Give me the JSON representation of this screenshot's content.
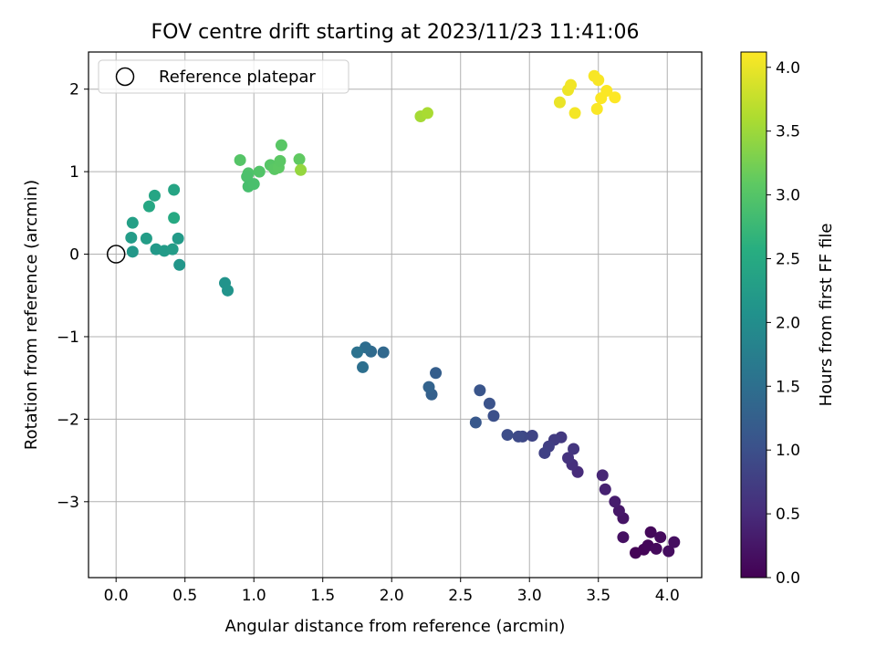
{
  "chart_data": {
    "type": "scatter",
    "title": "FOV centre drift starting at 2023/11/23 11:41:06",
    "xlabel": "Angular distance from reference (arcmin)",
    "ylabel": "Rotation from reference (arcmin)",
    "xlim": [
      -0.2,
      4.25
    ],
    "ylim": [
      -3.92,
      2.45
    ],
    "xticks": [
      0.0,
      0.5,
      1.0,
      1.5,
      2.0,
      2.5,
      3.0,
      3.5,
      4.0
    ],
    "xtick_labels": [
      "0.0",
      "0.5",
      "1.0",
      "1.5",
      "2.0",
      "2.5",
      "3.0",
      "3.5",
      "4.0"
    ],
    "yticks": [
      2,
      1,
      0,
      -1,
      -2,
      -3
    ],
    "ytick_labels": [
      "2",
      "1",
      "0",
      "−1",
      "−2",
      "−3"
    ],
    "grid": true,
    "legend": {
      "placement": "top-left",
      "entries": [
        "Reference platepar"
      ]
    },
    "reference_point": {
      "x": 0.0,
      "y": 0.0,
      "marker": "open-circle",
      "color": "#000000"
    },
    "colorbar": {
      "label": "Hours from first FF file",
      "colormap": "viridis",
      "range": [
        0.0,
        4.12
      ],
      "ticks": [
        0.0,
        0.5,
        1.0,
        1.5,
        2.0,
        2.5,
        3.0,
        3.5,
        4.0
      ],
      "tick_labels": [
        "0.0",
        "0.5",
        "1.0",
        "1.5",
        "2.0",
        "2.5",
        "3.0",
        "3.5",
        "4.0"
      ]
    },
    "points": [
      {
        "x": 3.77,
        "y": -3.62,
        "c": 0.02
      },
      {
        "x": 3.83,
        "y": -3.58,
        "c": 0.04
      },
      {
        "x": 3.86,
        "y": -3.53,
        "c": 0.06
      },
      {
        "x": 3.88,
        "y": -3.37,
        "c": 0.08
      },
      {
        "x": 3.92,
        "y": -3.57,
        "c": 0.1
      },
      {
        "x": 3.95,
        "y": -3.43,
        "c": 0.12
      },
      {
        "x": 4.01,
        "y": -3.6,
        "c": 0.14
      },
      {
        "x": 4.05,
        "y": -3.49,
        "c": 0.16
      },
      {
        "x": 3.68,
        "y": -3.43,
        "c": 0.18
      },
      {
        "x": 3.68,
        "y": -3.2,
        "c": 0.22
      },
      {
        "x": 3.65,
        "y": -3.11,
        "c": 0.26
      },
      {
        "x": 3.62,
        "y": -3.0,
        "c": 0.32
      },
      {
        "x": 3.55,
        "y": -2.85,
        "c": 0.38
      },
      {
        "x": 3.53,
        "y": -2.68,
        "c": 0.44
      },
      {
        "x": 3.35,
        "y": -2.64,
        "c": 0.5
      },
      {
        "x": 3.31,
        "y": -2.55,
        "c": 0.55
      },
      {
        "x": 3.28,
        "y": -2.47,
        "c": 0.6
      },
      {
        "x": 3.32,
        "y": -2.36,
        "c": 0.64
      },
      {
        "x": 3.23,
        "y": -2.22,
        "c": 0.68
      },
      {
        "x": 3.18,
        "y": -2.25,
        "c": 0.72
      },
      {
        "x": 3.14,
        "y": -2.33,
        "c": 0.76
      },
      {
        "x": 3.11,
        "y": -2.41,
        "c": 0.8
      },
      {
        "x": 3.02,
        "y": -2.2,
        "c": 0.84
      },
      {
        "x": 2.95,
        "y": -2.21,
        "c": 0.88
      },
      {
        "x": 2.92,
        "y": -2.21,
        "c": 0.92
      },
      {
        "x": 2.84,
        "y": -2.19,
        "c": 0.96
      },
      {
        "x": 2.74,
        "y": -1.96,
        "c": 1.0
      },
      {
        "x": 2.71,
        "y": -1.81,
        "c": 1.04
      },
      {
        "x": 2.64,
        "y": -1.65,
        "c": 1.08
      },
      {
        "x": 2.61,
        "y": -2.04,
        "c": 1.12
      },
      {
        "x": 2.32,
        "y": -1.44,
        "c": 1.22
      },
      {
        "x": 2.29,
        "y": -1.7,
        "c": 1.26
      },
      {
        "x": 2.27,
        "y": -1.61,
        "c": 1.3
      },
      {
        "x": 1.94,
        "y": -1.19,
        "c": 1.38
      },
      {
        "x": 1.85,
        "y": -1.18,
        "c": 1.42
      },
      {
        "x": 1.81,
        "y": -1.13,
        "c": 1.46
      },
      {
        "x": 1.79,
        "y": -1.37,
        "c": 1.5
      },
      {
        "x": 1.75,
        "y": -1.19,
        "c": 1.54
      },
      {
        "x": 0.42,
        "y": 0.78,
        "c": 2.4
      },
      {
        "x": 0.28,
        "y": 0.71,
        "c": 2.42
      },
      {
        "x": 0.24,
        "y": 0.58,
        "c": 2.45
      },
      {
        "x": 0.42,
        "y": 0.44,
        "c": 2.48
      },
      {
        "x": 0.12,
        "y": 0.38,
        "c": 2.3
      },
      {
        "x": 0.11,
        "y": 0.2,
        "c": 2.25
      },
      {
        "x": 0.22,
        "y": 0.19,
        "c": 2.28
      },
      {
        "x": 0.45,
        "y": 0.19,
        "c": 2.22
      },
      {
        "x": 0.12,
        "y": 0.03,
        "c": 2.18
      },
      {
        "x": 0.29,
        "y": 0.06,
        "c": 2.2
      },
      {
        "x": 0.35,
        "y": 0.04,
        "c": 2.23
      },
      {
        "x": 0.41,
        "y": 0.06,
        "c": 2.26
      },
      {
        "x": 0.46,
        "y": -0.13,
        "c": 2.15
      },
      {
        "x": 0.79,
        "y": -0.35,
        "c": 2.1
      },
      {
        "x": 0.81,
        "y": -0.44,
        "c": 2.12
      },
      {
        "x": 0.9,
        "y": 1.14,
        "c": 3.0
      },
      {
        "x": 0.96,
        "y": 0.98,
        "c": 2.95
      },
      {
        "x": 0.95,
        "y": 0.94,
        "c": 2.92
      },
      {
        "x": 0.96,
        "y": 0.82,
        "c": 2.88
      },
      {
        "x": 1.0,
        "y": 0.85,
        "c": 2.9
      },
      {
        "x": 1.04,
        "y": 1.0,
        "c": 2.98
      },
      {
        "x": 1.12,
        "y": 1.08,
        "c": 3.02
      },
      {
        "x": 1.15,
        "y": 1.03,
        "c": 3.05
      },
      {
        "x": 1.18,
        "y": 1.05,
        "c": 3.08
      },
      {
        "x": 1.19,
        "y": 1.13,
        "c": 3.06
      },
      {
        "x": 1.2,
        "y": 1.32,
        "c": 3.04
      },
      {
        "x": 1.33,
        "y": 1.15,
        "c": 3.1
      },
      {
        "x": 1.34,
        "y": 1.02,
        "c": 3.45
      },
      {
        "x": 2.21,
        "y": 1.67,
        "c": 3.55
      },
      {
        "x": 2.26,
        "y": 1.71,
        "c": 3.58
      },
      {
        "x": 3.22,
        "y": 1.84,
        "c": 4.0
      },
      {
        "x": 3.28,
        "y": 1.99,
        "c": 4.02
      },
      {
        "x": 3.3,
        "y": 2.05,
        "c": 4.04
      },
      {
        "x": 3.33,
        "y": 1.71,
        "c": 4.06
      },
      {
        "x": 3.47,
        "y": 2.16,
        "c": 4.08
      },
      {
        "x": 3.5,
        "y": 2.11,
        "c": 4.09
      },
      {
        "x": 3.49,
        "y": 1.76,
        "c": 4.1
      },
      {
        "x": 3.52,
        "y": 1.89,
        "c": 4.11
      },
      {
        "x": 3.56,
        "y": 1.98,
        "c": 4.11
      },
      {
        "x": 3.62,
        "y": 1.9,
        "c": 4.12
      }
    ]
  }
}
